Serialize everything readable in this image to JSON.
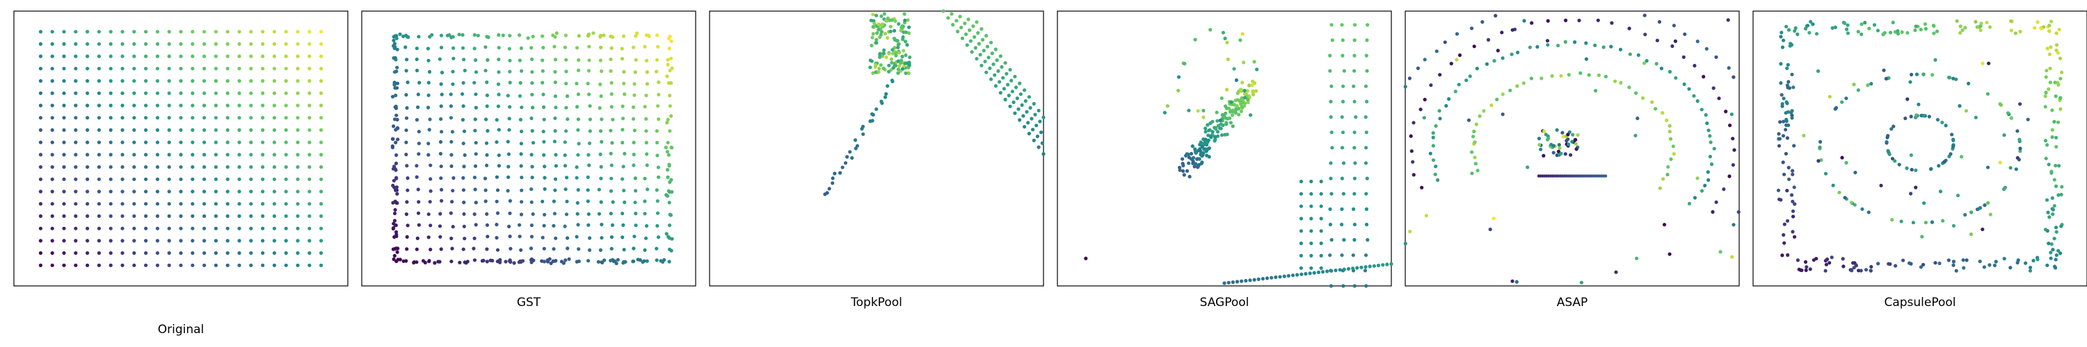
{
  "figure": {
    "captions": [
      "Original",
      "GST",
      "TopkPool",
      "SAGPool",
      "ASAP",
      "CapsulePool"
    ]
  },
  "colormap": "viridis",
  "colormap_stops": [
    "#440154",
    "#3b528b",
    "#21918c",
    "#5ec962",
    "#fde725"
  ],
  "chart_data": [
    {
      "type": "scatter",
      "title": "Original",
      "description_shape": "regular grid",
      "grid_cols": 25,
      "grid_rows": 20,
      "color_by": "x+y position (viridis)",
      "axes_ticks": false,
      "grid": false,
      "legend": "none"
    },
    {
      "type": "scatter",
      "title": "GST",
      "description_shape": "regular grid with dense left and bottom borders",
      "grid_cols": 25,
      "grid_rows": 20,
      "color_by": "x+y position (viridis)",
      "axes_ticks": false,
      "grid": false,
      "legend": "none"
    },
    {
      "type": "scatter",
      "title": "TopkPool",
      "description_shape": "inverted V / arch with dense cluster at peak",
      "color_by": "viridis",
      "axes_ticks": false,
      "grid": false,
      "legend": "none"
    },
    {
      "type": "scatter",
      "title": "SAGPool",
      "description_shape": "diagonal streak cluster plus vertical columns on right",
      "color_by": "viridis",
      "axes_ticks": false,
      "grid": false,
      "legend": "none"
    },
    {
      "type": "scatter",
      "title": "ASAP",
      "description_shape": "nested curved arcs around a central cluster",
      "color_by": "viridis",
      "axes_ticks": false,
      "grid": false,
      "legend": "none"
    },
    {
      "type": "scatter",
      "title": "CapsulePool",
      "description_shape": "rounded square ring with inner rings and central cluster",
      "color_by": "viridis",
      "axes_ticks": false,
      "grid": false,
      "legend": "none"
    }
  ]
}
